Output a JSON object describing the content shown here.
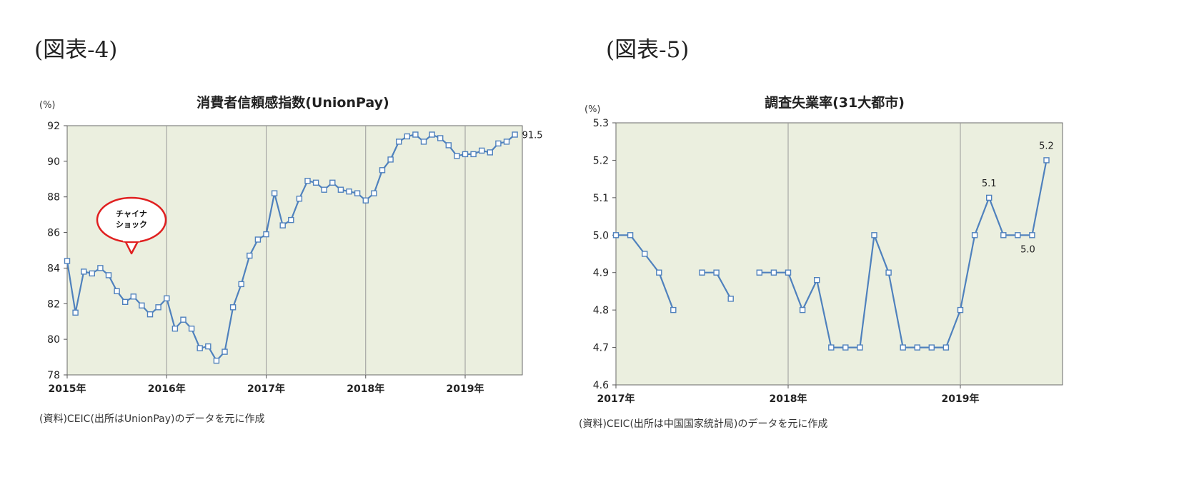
{
  "figure4": {
    "label": "(図表-4)",
    "source": "(資料)CEIC(出所はUnionPay)のデータを元に作成",
    "callout": [
      "チャイナ",
      "ショック"
    ],
    "chart_data": {
      "type": "line",
      "title": "消費者信頼感指数(UnionPay)",
      "unit": "(%)",
      "ylim": [
        78,
        92
      ],
      "yticks": [
        78,
        80,
        82,
        84,
        86,
        88,
        90,
        92
      ],
      "xticks": [
        "2015年",
        "2016年",
        "2017年",
        "2018年",
        "2019年"
      ],
      "grid": "vertical-year-lines",
      "series": [
        {
          "values": [
            84.4,
            81.5,
            83.8,
            83.7,
            84.0,
            83.6,
            82.7,
            82.1,
            82.4,
            81.9,
            81.4,
            81.8,
            82.3,
            80.6,
            81.1,
            80.6,
            79.5,
            79.6,
            78.8,
            79.3,
            81.8,
            83.1,
            84.7,
            85.6,
            85.9,
            88.2,
            86.4,
            86.7,
            87.9,
            88.9,
            88.8,
            88.4,
            88.8,
            88.4,
            88.3,
            88.2,
            87.8,
            88.2,
            89.5,
            90.1,
            91.1,
            91.4,
            91.5,
            91.1,
            91.5,
            91.3,
            90.9,
            90.3,
            90.4,
            90.4,
            90.6,
            90.5,
            91.0,
            91.1,
            91.5
          ],
          "end_label": "91.5",
          "color": "#4f81bd"
        }
      ]
    }
  },
  "figure5": {
    "label": "(図表-5)",
    "source": "(資料)CEIC(出所は中国国家統計局)のデータを元に作成",
    "chart_data": {
      "type": "line",
      "title": "調査失業率(31大都市)",
      "unit": "(%)",
      "ylim": [
        4.6,
        5.3
      ],
      "yticks": [
        4.6,
        4.7,
        4.8,
        4.9,
        5.0,
        5.1,
        5.2,
        5.3
      ],
      "xticks": [
        "2017年",
        "2018年",
        "2019年"
      ],
      "grid": "vertical-year-lines",
      "series": [
        {
          "values": [
            5.0,
            5.0,
            4.95,
            4.9,
            4.8,
            null,
            4.9,
            4.9,
            4.83,
            null,
            4.9,
            4.9,
            4.9,
            4.8,
            4.88,
            4.7,
            4.7,
            4.7,
            5.0,
            4.9,
            4.7,
            4.7,
            4.7,
            4.7,
            4.8,
            5.0,
            5.1,
            5.0,
            5.0,
            5.0,
            5.2
          ],
          "point_labels": [
            {
              "index": 26,
              "text": "5.1"
            },
            {
              "index": 29,
              "text": "5.0"
            },
            {
              "index": 30,
              "text": "5.2"
            }
          ],
          "color": "#4f81bd"
        }
      ]
    }
  }
}
